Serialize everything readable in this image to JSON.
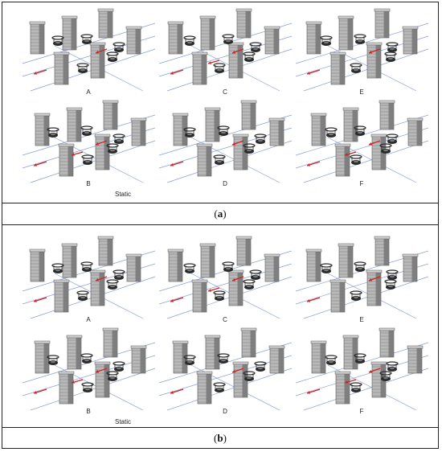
{
  "figure": {
    "panels": [
      {
        "caption_paren_open": "(",
        "caption_letter": "a",
        "caption_paren_close": ")",
        "scenes": [
          {
            "label": "A"
          },
          {
            "label": "C"
          },
          {
            "label": "E"
          },
          {
            "label": "B",
            "extra": "Static"
          },
          {
            "label": "D"
          },
          {
            "label": "F"
          }
        ]
      },
      {
        "caption_paren_open": "(",
        "caption_letter": "b",
        "caption_paren_close": ")",
        "scenes": [
          {
            "label": "A"
          },
          {
            "label": "C"
          },
          {
            "label": "E"
          },
          {
            "label": "B",
            "extra": "Static"
          },
          {
            "label": "D"
          },
          {
            "label": "F"
          }
        ]
      }
    ]
  },
  "colors": {
    "pillar_light": "#b9b9b9",
    "pillar_dark": "#6e6e6e",
    "guide_line": "#6c86c8",
    "arrow": "#d62020",
    "robot": "#2a2a2a"
  }
}
